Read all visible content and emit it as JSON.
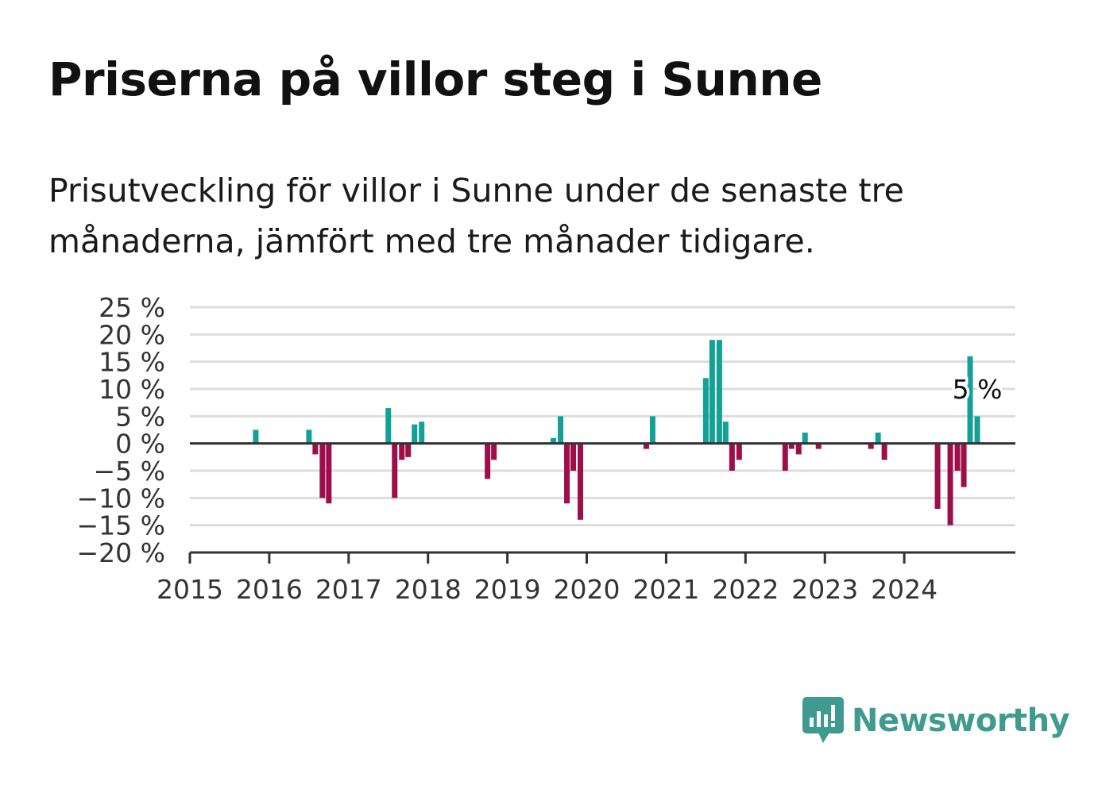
{
  "header": {
    "title": "Priserna på villor steg i Sunne",
    "subtitle": "Prisutveckling för villor i Sunne under de senaste tre månaderna, jämfört med tre månader tidigare."
  },
  "brand": {
    "name": "Newsworthy",
    "color": "#3f9b8f",
    "icon": "bar-chart-speech-bubble-icon"
  },
  "chart_data": {
    "type": "bar",
    "x_unit": "year",
    "xlim": [
      2015,
      2025.4
    ],
    "ylim": [
      -20,
      25
    ],
    "y_ticks": [
      25,
      20,
      15,
      10,
      5,
      0,
      -5,
      -10,
      -15,
      -20
    ],
    "y_tick_labels": [
      "25 %",
      "20 %",
      "15 %",
      "10 %",
      "5 %",
      "0 %",
      "−5 %",
      "−10 %",
      "−15 %",
      "−20 %"
    ],
    "x_ticks": [
      2015,
      2016,
      2017,
      2018,
      2019,
      2020,
      2021,
      2022,
      2023,
      2024
    ],
    "x_tick_labels": [
      "2015",
      "2016",
      "2017",
      "2018",
      "2019",
      "2020",
      "2021",
      "2022",
      "2023",
      "2024"
    ],
    "grid": true,
    "colors": {
      "positive": "#13a197",
      "negative": "#9e0e4a"
    },
    "annotation": {
      "text": "5 %",
      "x": 2024.92,
      "y": 10
    },
    "bars": [
      {
        "x": 2015.83,
        "y": 2.5
      },
      {
        "x": 2016.5,
        "y": 2.5
      },
      {
        "x": 2016.58,
        "y": -2
      },
      {
        "x": 2016.67,
        "y": -10
      },
      {
        "x": 2016.75,
        "y": -11
      },
      {
        "x": 2017.5,
        "y": 6.5
      },
      {
        "x": 2017.58,
        "y": -10
      },
      {
        "x": 2017.67,
        "y": -3
      },
      {
        "x": 2017.75,
        "y": -2.5
      },
      {
        "x": 2017.83,
        "y": 3.5
      },
      {
        "x": 2017.92,
        "y": 4
      },
      {
        "x": 2018.75,
        "y": -6.5
      },
      {
        "x": 2018.83,
        "y": -3
      },
      {
        "x": 2019.58,
        "y": 1
      },
      {
        "x": 2019.67,
        "y": 5
      },
      {
        "x": 2019.75,
        "y": -11
      },
      {
        "x": 2019.83,
        "y": -5
      },
      {
        "x": 2019.92,
        "y": -14
      },
      {
        "x": 2020.75,
        "y": -1
      },
      {
        "x": 2020.83,
        "y": 5
      },
      {
        "x": 2021.5,
        "y": 12
      },
      {
        "x": 2021.58,
        "y": 19
      },
      {
        "x": 2021.67,
        "y": 19
      },
      {
        "x": 2021.75,
        "y": 4
      },
      {
        "x": 2021.83,
        "y": -5
      },
      {
        "x": 2021.92,
        "y": -3
      },
      {
        "x": 2022.5,
        "y": -5
      },
      {
        "x": 2022.58,
        "y": -1
      },
      {
        "x": 2022.67,
        "y": -2
      },
      {
        "x": 2022.75,
        "y": 2
      },
      {
        "x": 2022.92,
        "y": -1
      },
      {
        "x": 2023.58,
        "y": -1
      },
      {
        "x": 2023.67,
        "y": 2
      },
      {
        "x": 2023.75,
        "y": -3
      },
      {
        "x": 2024.42,
        "y": -12
      },
      {
        "x": 2024.58,
        "y": -15
      },
      {
        "x": 2024.67,
        "y": -5
      },
      {
        "x": 2024.75,
        "y": -8
      },
      {
        "x": 2024.83,
        "y": 16
      },
      {
        "x": 2024.92,
        "y": 5
      }
    ]
  }
}
